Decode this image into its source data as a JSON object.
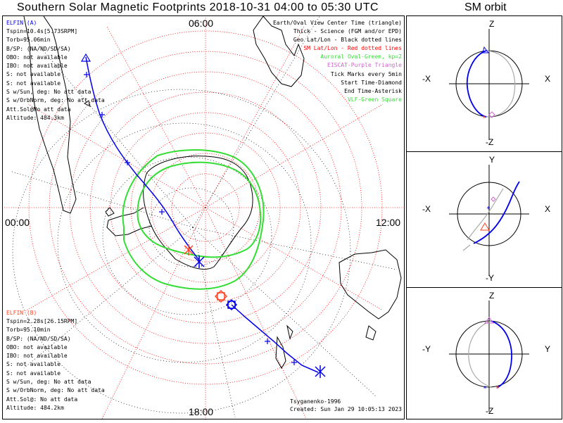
{
  "title": "Southern Solar Magnetic Footprints 2018-10-31 04:00 to 05:30 UTC",
  "sm_title": "SM orbit",
  "time_labels": {
    "top": "06:00",
    "left": "00:00",
    "right": "12:00",
    "bottom": "18:00"
  },
  "elfin_a": {
    "header": "ELFIN (A)",
    "lines": [
      "Tspin=10.4s[5.73SRPM]",
      "Torb=95.06min",
      "B/SP: (NA/ND/SD/SA)",
      "OBO: not available",
      "IBO: not available",
      "S: not available",
      "S: not available",
      "S w/Sun, deg: No att data",
      "S w/OrbNorm, deg: No att data",
      "Att.Sol@No att data",
      "Altitude: 484.3km"
    ]
  },
  "elfin_b": {
    "header": "ELFIN (B)",
    "lines": [
      "Tspin=2.28s[26.15RPM]",
      "Torb=95.10min",
      "B/SP: (NA/ND/SD/SA)",
      "OBO: not available",
      "IBO: not available",
      "S: not available",
      "S: not available",
      "S w/Sun, deg: No att data",
      "S w/OrbNorm, deg: No att data",
      "Att.Sol@: No att data",
      "Altitude: 484.2km"
    ]
  },
  "legend": [
    {
      "text": "Earth/Oval View Center Time (triangle)",
      "color": "#000000"
    },
    {
      "text": "Thick - Science (FGM and/or EPD)",
      "color": "#000000"
    },
    {
      "text": "Geo Lat/Lon - Black dotted lines",
      "color": "#000000"
    },
    {
      "text": "SM Lat/Lon - Red dotted lines",
      "color": "#ff0000"
    },
    {
      "text": "Auroral Oval-Green, kp=2",
      "color": "#33dd33"
    },
    {
      "text": "EISCAT-Purple Triangle",
      "color": "#cc66cc"
    },
    {
      "text": "Tick Marks every 5min",
      "color": "#000000"
    },
    {
      "text": "Start Time-Diamond",
      "color": "#000000"
    },
    {
      "text": "End Time-Asterisk",
      "color": "#000000"
    },
    {
      "text": "VLF-Green Square",
      "color": "#33dd33"
    }
  ],
  "footer": {
    "credit": "Tsyganenko-1996",
    "created": "Created: Sun Jan 29 10:05:13 2023"
  },
  "sm_panels": [
    {
      "top": "Z",
      "bottom": "-Z",
      "left": "-X",
      "right": "X"
    },
    {
      "top": "Y",
      "bottom": "-Y",
      "left": "-X",
      "right": "X"
    },
    {
      "top": "Z",
      "bottom": "-Z",
      "left": "-Y",
      "right": "Y"
    }
  ],
  "colors": {
    "elfin_a_track": "#0000ee",
    "elfin_b_track": "#ff4422",
    "sm_grid": "#ff0000",
    "geo_grid": "#000000",
    "auroral_oval": "#33dd33",
    "orbit_back": "#aaaaaa"
  }
}
